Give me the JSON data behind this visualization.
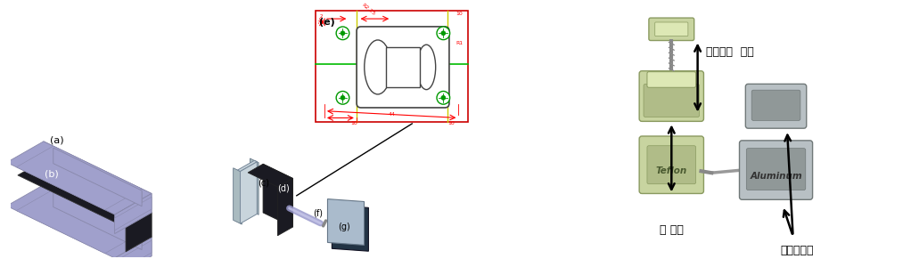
{
  "background_color": "#ffffff",
  "labels": {
    "a": "(a)",
    "b": "(b)",
    "c": "(c)",
    "d": "(d)",
    "e": "(e)",
    "f": "(f)",
    "g": "(g)"
  },
  "korean_labels": {
    "active_oxygen": "활성산소  통로",
    "iron_powder": "철 분말",
    "hydrogen_peroxide": "과산화수소"
  },
  "material_labels": {
    "teflon": "Teflon",
    "aluminum": "Aluminum"
  },
  "figsize": [
    10.22,
    2.91
  ],
  "dpi": 100
}
